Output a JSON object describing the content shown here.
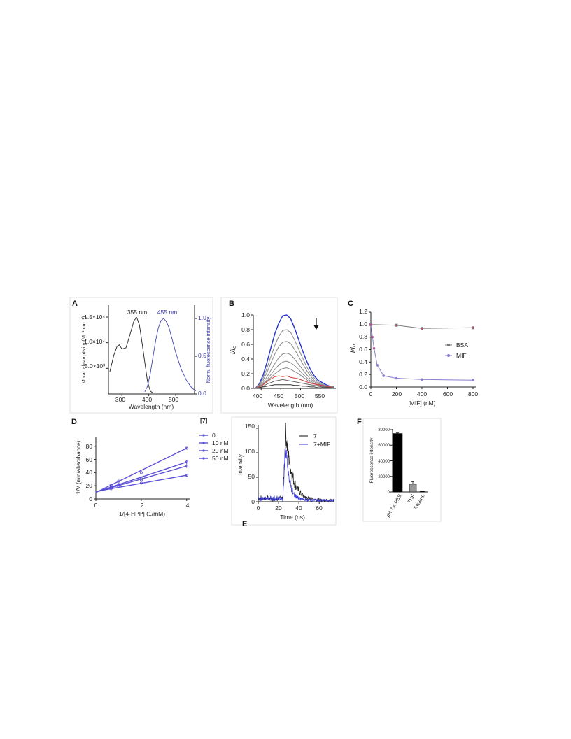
{
  "chart_data": [
    {
      "panel": "A",
      "type": "line",
      "xlabel": "Wavelength (nm)",
      "ylabel_left": "Molar absorptivity (M⁻¹ cm⁻¹)",
      "ylabel_right": "Norm. fluorescence intensity",
      "xticks": [
        300,
        400,
        500
      ],
      "yticks_left": [
        "5.0×10³",
        "1.0×10⁴",
        "1.5×10⁴"
      ],
      "yticks_right": [
        "0.0",
        "0.5",
        "1.0"
      ],
      "annotations": [
        "355 nm",
        "455 nm"
      ],
      "series": [
        {
          "name": "absorbance",
          "x": [
            255,
            270,
            282,
            290,
            300,
            315,
            330,
            345,
            355,
            365,
            375,
            385,
            395,
            405,
            415,
            430
          ],
          "values": [
            4300,
            7600,
            9300,
            9600,
            8800,
            9000,
            11600,
            14300,
            14900,
            13500,
            10000,
            6200,
            2500,
            600,
            200,
            200
          ]
        },
        {
          "name": "fluorescence",
          "x": [
            385,
            395,
            405,
            415,
            425,
            435,
            445,
            455,
            465,
            475,
            485,
            500,
            520,
            540,
            560,
            575
          ],
          "values": [
            0.03,
            0.1,
            0.26,
            0.48,
            0.7,
            0.87,
            0.97,
            1.0,
            0.96,
            0.88,
            0.75,
            0.55,
            0.33,
            0.18,
            0.08,
            0.04
          ]
        }
      ]
    },
    {
      "panel": "B",
      "type": "line",
      "xlabel": "Wavelength (nm)",
      "ylabel": "I/I₀",
      "xticks": [
        400,
        450,
        500,
        550
      ],
      "yticks": [
        "0.0",
        "0.2",
        "0.4",
        "0.6",
        "0.8",
        "1.0"
      ],
      "x": [
        385,
        395,
        405,
        415,
        425,
        435,
        445,
        455,
        465,
        475,
        485,
        495,
        505,
        515,
        525,
        535,
        545,
        555,
        565,
        575,
        585
      ],
      "series": [
        {
          "color": "#2233cc",
          "values": [
            0.0,
            0.06,
            0.18,
            0.36,
            0.56,
            0.75,
            0.89,
            0.99,
            1.0,
            0.95,
            0.82,
            0.67,
            0.52,
            0.38,
            0.26,
            0.17,
            0.11,
            0.08,
            0.05,
            0.03,
            0.02
          ]
        },
        {
          "color": "#888888",
          "values": [
            0.0,
            0.05,
            0.14,
            0.28,
            0.44,
            0.59,
            0.71,
            0.79,
            0.8,
            0.76,
            0.66,
            0.54,
            0.42,
            0.3,
            0.21,
            0.14,
            0.09,
            0.06,
            0.04,
            0.03,
            0.02
          ]
        },
        {
          "color": "#888888",
          "values": [
            0.0,
            0.04,
            0.11,
            0.22,
            0.35,
            0.47,
            0.57,
            0.63,
            0.64,
            0.61,
            0.53,
            0.44,
            0.34,
            0.25,
            0.17,
            0.11,
            0.07,
            0.05,
            0.03,
            0.02,
            0.01
          ]
        },
        {
          "color": "#888888",
          "values": [
            0.0,
            0.03,
            0.08,
            0.16,
            0.25,
            0.34,
            0.42,
            0.47,
            0.48,
            0.46,
            0.4,
            0.33,
            0.26,
            0.19,
            0.13,
            0.09,
            0.06,
            0.04,
            0.03,
            0.02,
            0.01
          ]
        },
        {
          "color": "#888888",
          "values": [
            0.0,
            0.02,
            0.06,
            0.12,
            0.19,
            0.26,
            0.32,
            0.36,
            0.37,
            0.35,
            0.31,
            0.26,
            0.2,
            0.15,
            0.1,
            0.07,
            0.05,
            0.03,
            0.02,
            0.01,
            0.01
          ]
        },
        {
          "color": "#888888",
          "values": [
            0.0,
            0.02,
            0.05,
            0.1,
            0.15,
            0.2,
            0.24,
            0.27,
            0.28,
            0.26,
            0.23,
            0.2,
            0.16,
            0.12,
            0.08,
            0.06,
            0.04,
            0.03,
            0.02,
            0.01,
            0.0
          ]
        },
        {
          "color": "#d83a3a",
          "values": [
            0.0,
            0.02,
            0.05,
            0.09,
            0.13,
            0.16,
            0.17,
            0.16,
            0.17,
            0.15,
            0.14,
            0.13,
            0.11,
            0.09,
            0.07,
            0.06,
            0.05,
            0.04,
            0.03,
            0.02,
            0.01
          ]
        },
        {
          "color": "#666666",
          "values": [
            0.0,
            0.01,
            0.03,
            0.06,
            0.08,
            0.1,
            0.11,
            0.12,
            0.11,
            0.1,
            0.09,
            0.08,
            0.07,
            0.06,
            0.05,
            0.04,
            0.03,
            0.02,
            0.02,
            0.01,
            0.01
          ]
        },
        {
          "color": "#333333",
          "values": [
            0.0,
            0.01,
            0.02,
            0.03,
            0.04,
            0.05,
            0.05,
            0.05,
            0.05,
            0.05,
            0.04,
            0.04,
            0.03,
            0.03,
            0.02,
            0.02,
            0.01,
            0.01,
            0.01,
            0.01,
            0.0
          ]
        }
      ]
    },
    {
      "panel": "C",
      "type": "line",
      "xlabel": "[MIF] (nM)",
      "ylabel": "I/I₀",
      "xticks": [
        "0",
        "200",
        "400",
        "600",
        "800"
      ],
      "yticks": [
        "0.0",
        "0.2",
        "0.4",
        "0.6",
        "0.8",
        "1.0",
        "1.2"
      ],
      "series": [
        {
          "name": "BSA",
          "color": "#7a7a7a",
          "x": [
            0,
            200,
            400,
            800
          ],
          "values": [
            1.0,
            0.99,
            0.94,
            0.95
          ]
        },
        {
          "name": "MIF",
          "color": "#8a7fcf",
          "x": [
            0,
            12.5,
            25,
            50,
            100,
            200,
            400,
            800
          ],
          "values": [
            1.0,
            0.8,
            0.62,
            0.35,
            0.18,
            0.14,
            0.12,
            0.11
          ]
        }
      ]
    },
    {
      "panel": "D",
      "type": "scatter",
      "xlabel": "1/[4-HPP] (1/mM)",
      "ylabel": "1/V (min/absorbance)",
      "legend_title": "[7]",
      "xticks": [
        "0",
        "2",
        "4"
      ],
      "yticks": [
        "0",
        "20",
        "40",
        "60",
        "80"
      ],
      "x": [
        0.67,
        1.0,
        2.0,
        4.0
      ],
      "series": [
        {
          "name": "0",
          "values": [
            15.5,
            19,
            24,
            36
          ]
        },
        {
          "name": "10 nM",
          "values": [
            17,
            21,
            29,
            50
          ]
        },
        {
          "name": "20 nM",
          "values": [
            18,
            22,
            31,
            56
          ]
        },
        {
          "name": "50 nM",
          "values": [
            21,
            27,
            40,
            77
          ]
        }
      ]
    },
    {
      "panel": "E",
      "type": "line",
      "xlabel": "Time (ns)",
      "ylabel": "Intensity",
      "xticks": [
        "0",
        "20",
        "40",
        "60"
      ],
      "yticks": [
        "0",
        "50",
        "100",
        "150"
      ],
      "series": [
        {
          "name": "7",
          "peak_x": 27,
          "peak_y": 140
        },
        {
          "name": "7+MIF",
          "peak_x": 27,
          "peak_y": 105
        }
      ]
    },
    {
      "panel": "F",
      "type": "bar",
      "ylabel": "Fluorescence intensity",
      "categories": [
        "pH 7.4 PBS",
        "THF",
        "Toluene"
      ],
      "values": [
        75000,
        10000,
        500
      ],
      "errors": [
        800,
        3000,
        300
      ],
      "yticks": [
        "0",
        "20000",
        "40000",
        "60000",
        "80000"
      ],
      "ylim": [
        0,
        80000
      ]
    }
  ]
}
